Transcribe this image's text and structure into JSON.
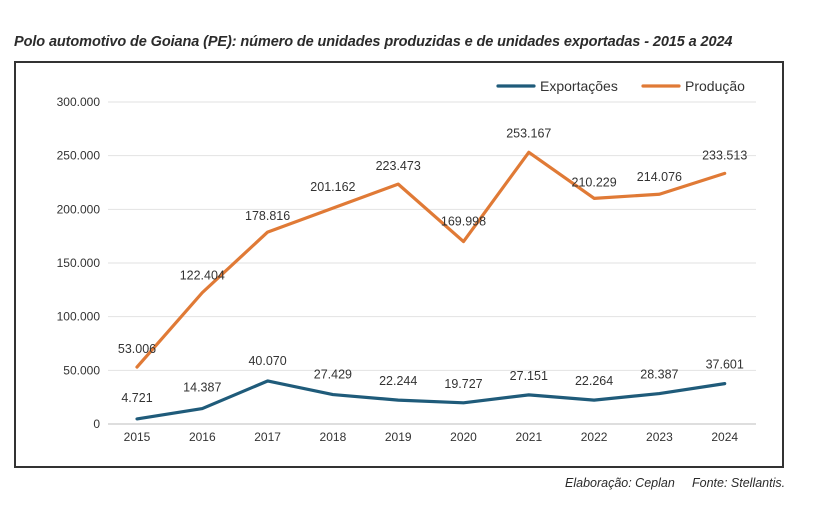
{
  "title": "Polo automotivo de Goiana (PE): número de unidades produzidas e de unidades exportadas - 2015 a 2024",
  "footer": {
    "elaboration": "Elaboração: Ceplan",
    "source": "Fonte: Stellantis."
  },
  "chart_data": {
    "type": "line",
    "title": "Polo automotivo de Goiana (PE): número de unidades produzidas e de unidades exportadas - 2015 a 2024",
    "xlabel": "",
    "ylabel": "",
    "categories": [
      "2015",
      "2016",
      "2017",
      "2018",
      "2019",
      "2020",
      "2021",
      "2022",
      "2023",
      "2024"
    ],
    "ylim": [
      0,
      300000
    ],
    "yticks": [
      0,
      50000,
      100000,
      150000,
      200000,
      250000,
      300000
    ],
    "ytick_labels": [
      "0",
      "50.000",
      "100.000",
      "150.000",
      "200.000",
      "250.000",
      "300.000"
    ],
    "grid": true,
    "legend_position": "top-right",
    "series": [
      {
        "name": "Exportações",
        "color": "#1f5b7a",
        "values": [
          4721,
          14387,
          40070,
          27429,
          22244,
          19727,
          27151,
          22264,
          28387,
          37601
        ],
        "labels": [
          "4.721",
          "14.387",
          "40.070",
          "27.429",
          "22.244",
          "19.727",
          "27.151",
          "22.264",
          "28.387",
          "37.601"
        ]
      },
      {
        "name": "Produção",
        "color": "#e07a36",
        "values": [
          53006,
          122404,
          178816,
          201162,
          223473,
          169998,
          253167,
          210229,
          214076,
          233513
        ],
        "labels": [
          "53.006",
          "122.404",
          "178.816",
          "201.162",
          "223.473",
          "169.998",
          "253.167",
          "210.229",
          "214.076",
          "233.513"
        ]
      }
    ]
  }
}
